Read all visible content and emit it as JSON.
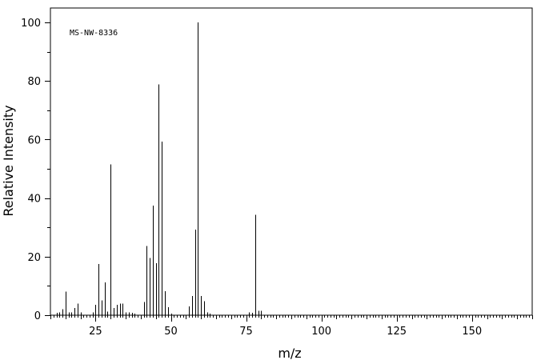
{
  "chart_data": {
    "type": "bar",
    "title": "",
    "annotation": "MS-NW-8336",
    "xlabel": "m/z",
    "ylabel": "Relative Intensity",
    "xlim": [
      10,
      170
    ],
    "ylim": [
      0,
      100
    ],
    "xticks": [
      25,
      50,
      75,
      100,
      125,
      150
    ],
    "yticks": [
      0,
      20,
      40,
      60,
      80,
      100
    ],
    "grid": false,
    "x": [
      12,
      13,
      14,
      15,
      16,
      17,
      18,
      19,
      20,
      24,
      25,
      26,
      27,
      28,
      29,
      30,
      31,
      32,
      33,
      34,
      35,
      36,
      37,
      38,
      41,
      42,
      43,
      44,
      45,
      46,
      47,
      48,
      49,
      50,
      56,
      57,
      58,
      59,
      60,
      61,
      62,
      63,
      76,
      77,
      78,
      79,
      80
    ],
    "values": [
      0.8,
      1.0,
      2.0,
      8.0,
      1.0,
      1.0,
      2.5,
      4.0,
      1.0,
      1.0,
      3.5,
      17.5,
      5.0,
      11.2,
      1.2,
      51.5,
      2.5,
      3.5,
      4.0,
      4.0,
      1.0,
      1.0,
      0.8,
      0.6,
      4.5,
      23.7,
      19.5,
      37.5,
      17.8,
      78.8,
      59.3,
      8.2,
      2.8,
      0.5,
      3.0,
      6.5,
      29.2,
      100,
      6.5,
      4.8,
      1.0,
      0.5,
      1.0,
      0.8,
      34.3,
      1.5,
      1.5
    ]
  }
}
